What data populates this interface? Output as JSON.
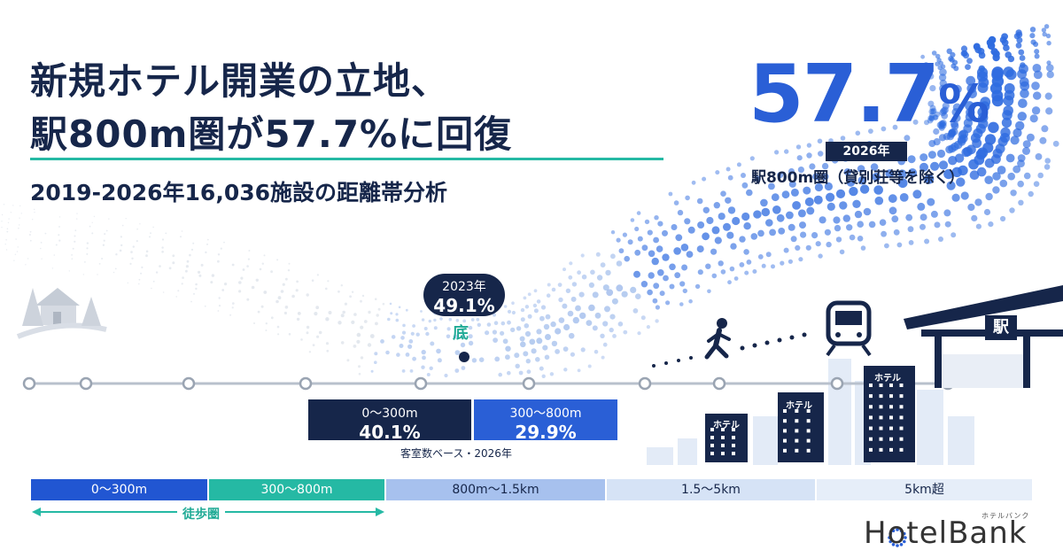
{
  "title_line1": "新規ホテル開業の立地、",
  "title_line2": "駅800m圏が57.7%に回復",
  "subtitle": "2019-2026年16,036施設の距離帯分析",
  "headline": {
    "value": "57.7",
    "unit": "%",
    "year": "2026年",
    "caption": "駅800m圏（貸別荘等を除く）"
  },
  "low_point": {
    "year": "2023年",
    "value": "49.1%",
    "label": "底"
  },
  "shares": [
    {
      "range": "0〜300m",
      "value": "40.1%"
    },
    {
      "range": "300〜800m",
      "value": "29.9%"
    }
  ],
  "share_note": "客室数ベース・2026年",
  "bands": [
    "0〜300m",
    "300〜800m",
    "800m〜1.5km",
    "1.5〜5km",
    "5km超"
  ],
  "walk_label": "徒歩圏",
  "hotel_sign": "ホテル",
  "station_sign": "駅",
  "logo": "HotelBank",
  "logo_ruby": "ホテルバンク",
  "colors": {
    "navy": "#16264a",
    "blue": "#2a5fd6",
    "teal": "#25b9a4"
  },
  "icons": [
    "house-icon",
    "tree-icon",
    "walking-person-icon",
    "train-icon",
    "station-icon",
    "hotel-building-icon"
  ]
}
